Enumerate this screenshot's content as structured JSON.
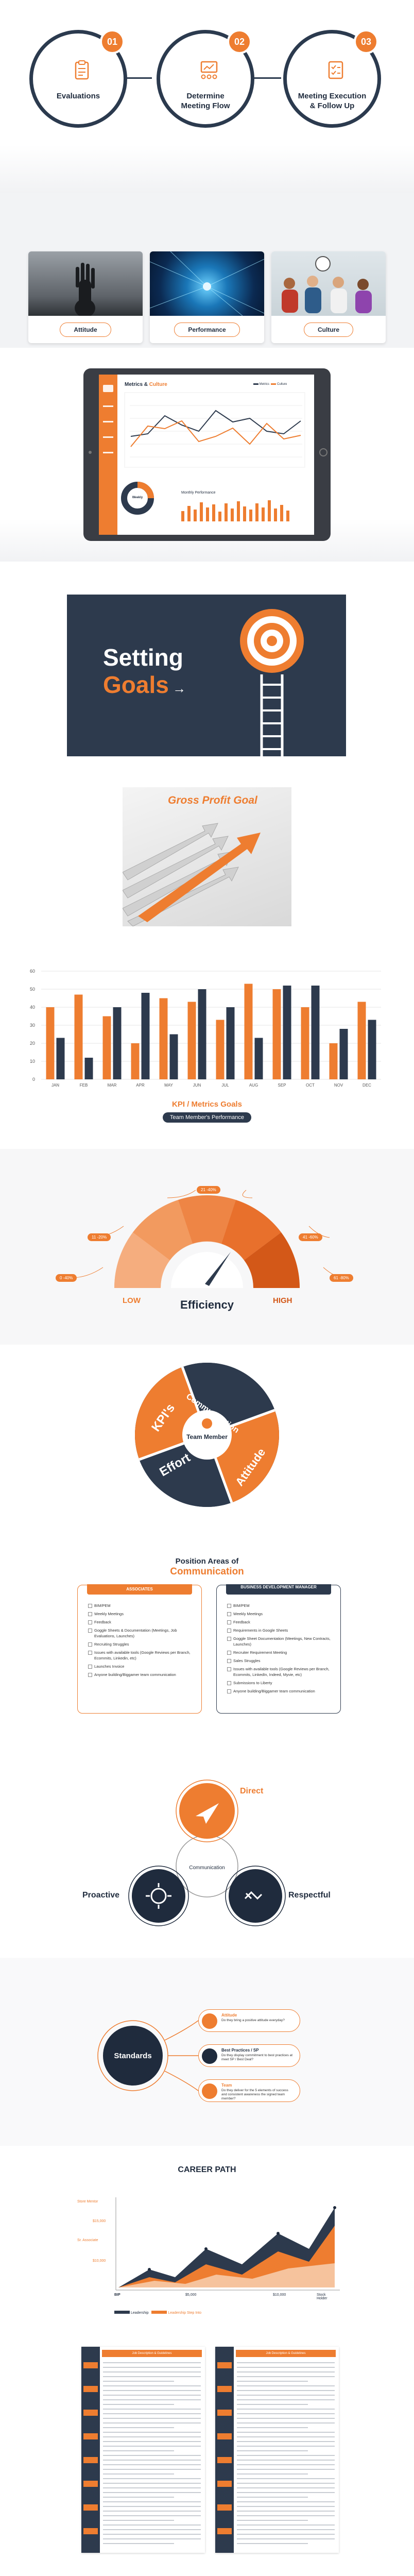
{
  "process": {
    "steps": [
      {
        "num": "01",
        "label": "Evaluations"
      },
      {
        "num": "02",
        "label": "Determine Meeting Flow"
      },
      {
        "num": "03",
        "label": "Meeting Execution & Follow Up"
      }
    ]
  },
  "cards": [
    {
      "label": "Attitude"
    },
    {
      "label": "Performance"
    },
    {
      "label": "Culture"
    }
  ],
  "dashboard": {
    "title_dark": "Metrics",
    "title_amp": " & ",
    "title_orange": "Culture",
    "legend": [
      "Metrics",
      "Culture"
    ],
    "donut_label": "Weekly",
    "bars_title": "Monthly Performance"
  },
  "setting_goals": {
    "line1": "Setting",
    "line2": "Goals"
  },
  "gross_profit": {
    "title": "Gross Profit Goal"
  },
  "chart_data": [
    {
      "type": "bar",
      "categories": [
        "JAN",
        "FEB",
        "MAR",
        "APR",
        "MAY",
        "JUN",
        "JUL",
        "AUG",
        "SEP",
        "OCT",
        "NOV",
        "DEC"
      ],
      "series": [
        {
          "values": [
            40,
            47,
            35,
            20,
            45,
            43,
            33,
            53,
            50,
            40,
            20,
            43
          ]
        },
        {
          "values": [
            23,
            12,
            40,
            48,
            25,
            50,
            40,
            23,
            52,
            52,
            28,
            33
          ]
        }
      ],
      "ylim": [
        0,
        60
      ],
      "yticks": [
        0,
        10,
        20,
        30,
        40,
        50,
        60
      ],
      "title": "KPI / Metrics Goals",
      "subtitle": "Team Member's Performance",
      "colors": [
        "#ee7d30",
        "#2d3a4d"
      ]
    },
    {
      "type": "area",
      "title": "CAREER PATH",
      "ylabels": [
        "Store Mentor",
        "$15,000",
        "Sr. Associate",
        "$10,000"
      ],
      "xlabels": [
        "BIP",
        "$5,000",
        "$10,000",
        "Stock Holder"
      ],
      "legend": [
        "Leadership",
        "Leadership Step Into"
      ],
      "colors": [
        "#2d3a4d",
        "#ee7d30"
      ]
    }
  ],
  "gauge": {
    "labels": [
      "0 -40%",
      "11 -20%",
      "21 -40%",
      "41 -60%",
      "61 -80%",
      "81 -100%"
    ],
    "low": "LOW",
    "high": "HIGH",
    "title": "Efficiency"
  },
  "wheel": {
    "center": "Team Member",
    "segments": [
      "Communication",
      "Attitude",
      "Effort",
      "KPI's"
    ]
  },
  "position_areas": {
    "title_line1": "Position Areas of",
    "title_line2": "Communication",
    "left_header": "ASSOCIATES",
    "right_header": "BUSINESS DEVELOPMENT MANAGER",
    "left_items": [
      "BIM/PEM",
      "Weekly Meetings",
      "Feedback",
      "Goggle Sheets & Documentation (Meetings, Job Evaluations, Launches)",
      "Recruiting Struggles",
      "Issues with available tools (Google Reviews per Branch, Ecommits, Linkedin, etc)",
      "Launches Invoice",
      "Anyone building/Biggamer team communication"
    ],
    "right_items": [
      "BIM/PEM",
      "Weekly Meetings",
      "Feedback",
      "Requirements in Google Sheets",
      "Goggle Sheet Documentation (Meetings, New Contracts, Launches)",
      "Recruiter Requirement Meeting",
      "Sales Struggles",
      "Issues with available tools (Google Reviews per Branch, Ecommits, LinkedIn, Indeed, Myvie, etc)",
      "Submissions to Liberty",
      "Anyone building/Biggamer team communication"
    ]
  },
  "venn": {
    "top": "Direct",
    "left": "Proactive",
    "right": "Respectful",
    "center": "Communication"
  },
  "standards": {
    "center": "Standards",
    "items": [
      {
        "title": "Attitude",
        "desc": "Do they bring a positive attitude everyday?"
      },
      {
        "title": "Best Practices / SP",
        "desc": "Do they display commitment to best practices at meet SP / Best Deal?"
      },
      {
        "title": "Team",
        "desc": "Do they deliver for the 5 elements of success and consistent awareness the signed team member?"
      }
    ]
  },
  "docs": {
    "left_header": "Job Description & Guidelines",
    "right_header": "Job Description & Guidelines"
  }
}
